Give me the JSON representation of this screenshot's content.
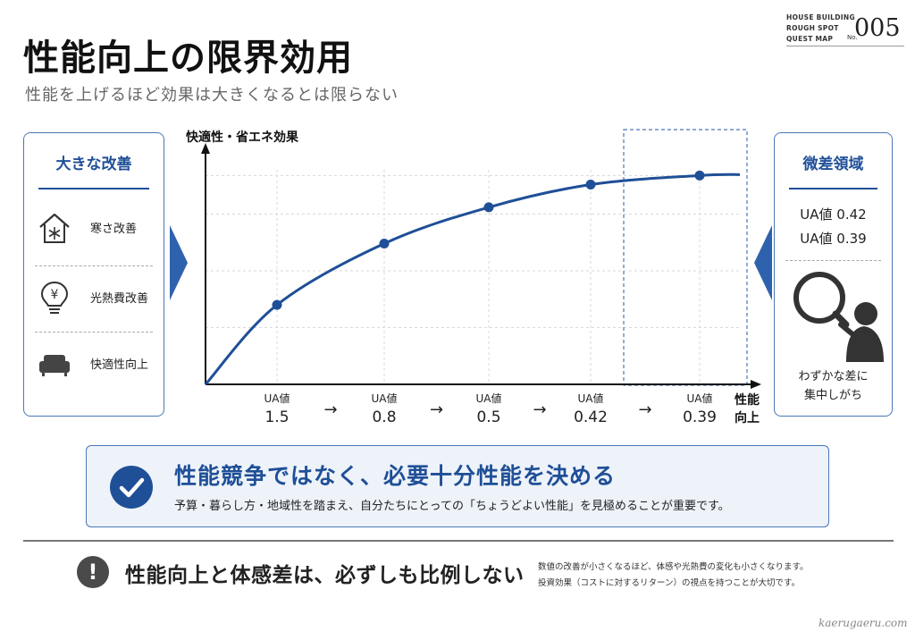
{
  "header": {
    "title": "性能向上の限界効用",
    "subtitle": "性能を上げるほど効果は大きくなるとは限らない"
  },
  "badge": {
    "line1": "HOUSE BUILDING",
    "line2": "ROUGH SPOT",
    "line3": "QUEST MAP",
    "no_prefix": "No.",
    "number": "005"
  },
  "left_panel": {
    "heading": "大きな改善",
    "items": [
      {
        "icon": "house-snowflake-icon",
        "label": "寒さ改善"
      },
      {
        "icon": "lightbulb-yen-icon",
        "label": "光熱費改善"
      },
      {
        "icon": "sofa-icon",
        "label": "快適性向上"
      }
    ]
  },
  "right_panel": {
    "heading": "微差領域",
    "ua_lines": [
      "UA値 0.42",
      "UA値 0.39"
    ],
    "icon": "magnifier-person-icon",
    "caption_line1": "わずかな差に",
    "caption_line2": "集中しがち"
  },
  "chart_data": {
    "type": "line",
    "ylabel": "快適性・省エネ効果",
    "xlabel": "性能向上",
    "x_tick_prefix": "UA値",
    "x": [
      "1.5",
      "0.8",
      "0.5",
      "0.42",
      "0.39"
    ],
    "series": [
      {
        "values": [
          0.35,
          0.62,
          0.78,
          0.88,
          0.92
        ]
      }
    ],
    "ylim": [
      0,
      1
    ],
    "grid": true,
    "highlight_region": "last point (UA値 0.39)",
    "line_color": "#1f4f97",
    "highlight_color": "#4a77b8"
  },
  "conclusion": {
    "heading": "性能競争ではなく、必要十分性能を決める",
    "sub": "予算・暮らし方・地域性を踏まえ、自分たちにとっての「ちょうどよい性能」を見極めることが重要です。"
  },
  "bottom": {
    "heading": "性能向上と体感差は、必ずしも比例しない",
    "note1": "数値の改善が小さくなるほど、体感や光熱費の変化も小さくなります。",
    "note2": "投資効果（コストに対するリターン）の視点を持つことが大切です。"
  },
  "watermark": "kaerugaeru.com",
  "colors": {
    "accent": "#1f4f97",
    "border": "#4a77b8",
    "panel_bg": "#eef3fa"
  }
}
